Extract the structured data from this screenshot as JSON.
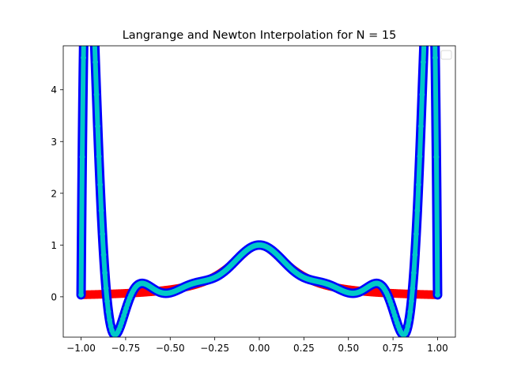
{
  "chart_data": {
    "type": "line",
    "title": "Langrange and Newton Interpolation for N = 15",
    "xlabel": "",
    "ylabel": "",
    "xlim": [
      -1.1,
      1.1
    ],
    "ylim": [
      -0.78,
      4.85
    ],
    "x_ticks": [
      -1.0,
      -0.75,
      -0.5,
      -0.25,
      0.0,
      0.25,
      0.5,
      0.75,
      1.0
    ],
    "x_tick_labels": [
      "−1.00",
      "−0.75",
      "−0.50",
      "−0.25",
      "0.00",
      "0.25",
      "0.50",
      "0.75",
      "1.00"
    ],
    "y_ticks": [
      0,
      1,
      2,
      3,
      4
    ],
    "y_tick_labels": [
      "0",
      "1",
      "2",
      "3",
      "4"
    ],
    "grid": false,
    "legend": {
      "placement": "top-right",
      "entries": []
    },
    "function": "1/(1+25x^2)",
    "n_nodes": 15,
    "x_start": -1.0,
    "x_end": 1.0,
    "series": [
      {
        "role": "true-function",
        "color": "#ff0000",
        "style": "thick solid line"
      },
      {
        "role": "lagrange-interpolation",
        "color": "#0000ff",
        "style": "thick solid line"
      },
      {
        "role": "newton-interpolation",
        "color": "#00c8c8",
        "style": "solid line with circle markers"
      },
      {
        "role": "dense-sample-points",
        "color": "#1f77b4",
        "marker_edge": "#0000ff",
        "style": "dashed line with square markers"
      }
    ]
  }
}
